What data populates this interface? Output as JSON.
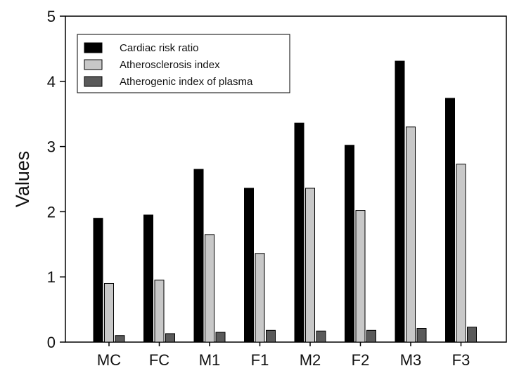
{
  "chart_data": {
    "type": "bar",
    "title": "",
    "xlabel": "",
    "ylabel": "Values",
    "ylim": [
      0,
      5
    ],
    "yticks": [
      0,
      1,
      2,
      3,
      4,
      5
    ],
    "grid": false,
    "legend_position": "top-left",
    "categories": [
      "MC",
      "FC",
      "M1",
      "F1",
      "M2",
      "F2",
      "M3",
      "F3"
    ],
    "series": [
      {
        "name": "Cardiac risk ratio",
        "color": "#000000",
        "values": [
          1.9,
          1.95,
          2.65,
          2.36,
          3.36,
          3.02,
          4.31,
          3.74
        ]
      },
      {
        "name": "Atherosclerosis index",
        "color": "#c8c8c8",
        "values": [
          0.9,
          0.95,
          1.65,
          1.36,
          2.36,
          2.02,
          3.3,
          2.73
        ]
      },
      {
        "name": "Atherogenic index of plasma",
        "color": "#5a5a5a",
        "values": [
          0.1,
          0.13,
          0.15,
          0.18,
          0.17,
          0.18,
          0.21,
          0.23
        ]
      }
    ]
  }
}
